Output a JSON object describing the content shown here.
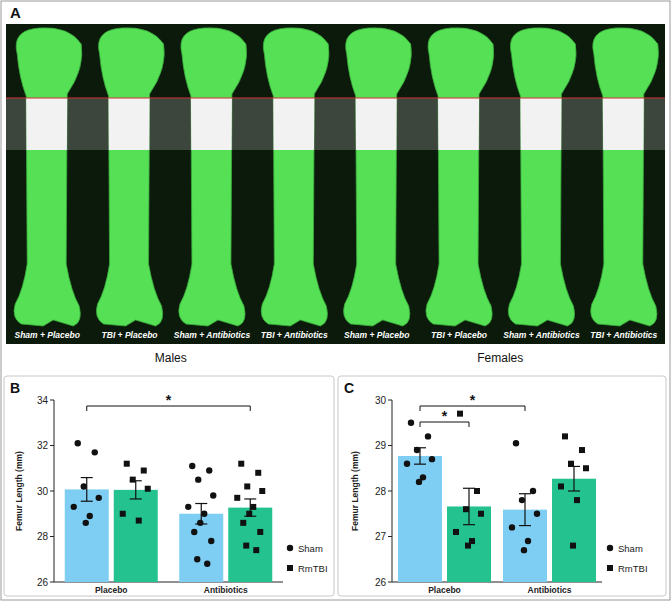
{
  "panel_a": {
    "label": "A",
    "captions": [
      "Sham + Placebo",
      "TBI + Placebo",
      "Sham + Antibiotics",
      "TBI + Antibiotics",
      "Sham + Placebo",
      "TBI + Placebo",
      "Sham + Antibiotics",
      "TBI + Antibiotics"
    ],
    "groups": [
      "Males",
      "Females"
    ]
  },
  "chart_data": [
    {
      "type": "bar",
      "panel_label": "B",
      "ylabel": "Femur Length (mm)",
      "categories": [
        "Placebo",
        "Antibiotics"
      ],
      "ylim": [
        26,
        34
      ],
      "yticks": [
        26,
        28,
        30,
        32,
        34
      ],
      "legend": "right",
      "series": [
        {
          "name": "Sham",
          "color": "#7dcef2",
          "marker": "circle",
          "values": [
            30.07,
            29.0
          ],
          "errors": [
            0.52,
            0.45
          ],
          "points": [
            [
              32.1,
              31.7,
              30.2,
              29.7,
              29.3,
              28.9,
              28.6
            ],
            [
              31.1,
              30.9,
              30.5,
              29.8,
              29.3,
              29.0,
              28.6,
              28.2,
              27.8,
              27.0,
              26.8
            ]
          ]
        },
        {
          "name": "RmTBI",
          "color": "#23c28e",
          "marker": "square",
          "values": [
            30.05,
            29.27
          ],
          "errors": [
            0.4,
            0.38
          ],
          "points": [
            [
              31.2,
              30.9,
              30.5,
              30.1,
              29.0,
              28.7
            ],
            [
              31.2,
              30.8,
              30.2,
              30.0,
              29.7,
              29.3,
              29.0,
              28.6,
              28.2,
              27.6,
              27.4
            ]
          ]
        }
      ],
      "annotations": [
        {
          "text": "*",
          "from": {
            "series": 0,
            "category": 0
          },
          "to": {
            "series": 1,
            "category": 1
          }
        }
      ]
    },
    {
      "type": "bar",
      "panel_label": "C",
      "ylabel": "Femur Length (mm)",
      "categories": [
        "Placebo",
        "Antibiotics"
      ],
      "ylim": [
        26,
        30
      ],
      "yticks": [
        26,
        27,
        28,
        29,
        30
      ],
      "legend": "right",
      "series": [
        {
          "name": "Sham",
          "color": "#7dcef2",
          "marker": "circle",
          "values": [
            28.77,
            27.59
          ],
          "errors": [
            0.18,
            0.35
          ],
          "points": [
            [
              29.5,
              29.2,
              28.9,
              28.7,
              28.6,
              28.3,
              28.2
            ],
            [
              29.05,
              28.0,
              27.8,
              27.5,
              27.2,
              26.9,
              26.7
            ]
          ]
        },
        {
          "name": "RmTBI",
          "color": "#23c28e",
          "marker": "square",
          "values": [
            27.66,
            28.27
          ],
          "errors": [
            0.4,
            0.27
          ],
          "points": [
            [
              29.7,
              28.0,
              27.6,
              27.5,
              27.1,
              26.9,
              26.8
            ],
            [
              29.2,
              28.9,
              28.6,
              28.5,
              28.1,
              27.8,
              26.8
            ]
          ]
        }
      ],
      "annotations": [
        {
          "text": "*",
          "from": {
            "series": 0,
            "category": 0
          },
          "to": {
            "series": 1,
            "category": 0
          }
        },
        {
          "text": "*",
          "from": {
            "series": 0,
            "category": 0
          },
          "to": {
            "series": 0,
            "category": 1
          }
        }
      ]
    }
  ]
}
